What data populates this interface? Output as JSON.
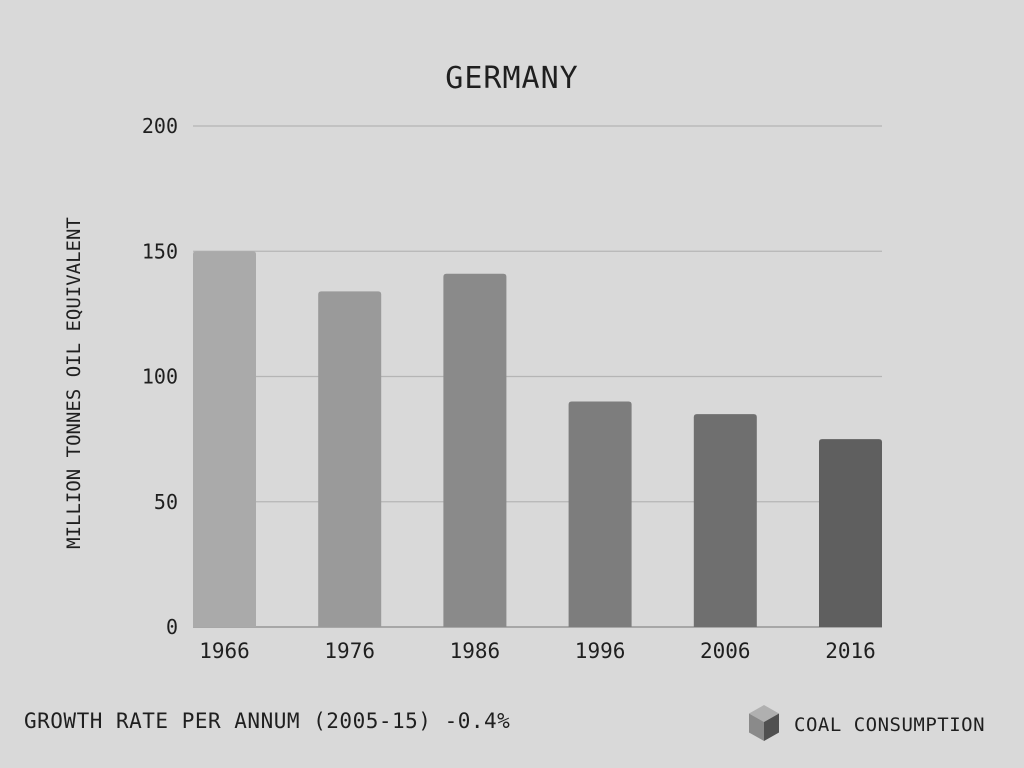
{
  "footer": {
    "growth_label": "GROWTH RATE PER ANNUM (2005-15) -0.4%",
    "legend_label": "COAL CONSUMPTION",
    "legend_icon": "cube-icon"
  },
  "colors": {
    "background": "#d9d9d9",
    "gridline": "#b5b5b5",
    "text": "#1f1f1f",
    "bars": [
      "#aaaaaa",
      "#9a9a9a",
      "#8a8a8a",
      "#7d7d7d",
      "#6f6f6f",
      "#5f5f5f"
    ]
  },
  "chart_data": {
    "type": "bar",
    "title": "GERMANY",
    "xlabel": "",
    "ylabel": "MILLION TONNES OIL EQUIVALENT",
    "categories": [
      "1966",
      "1976",
      "1986",
      "1996",
      "2006",
      "2016"
    ],
    "values": [
      150,
      134,
      141,
      90,
      85,
      75
    ],
    "ylim": [
      0,
      200
    ],
    "yticks": [
      0,
      50,
      100,
      150,
      200
    ],
    "grid": true,
    "legend": "bottom-right"
  }
}
